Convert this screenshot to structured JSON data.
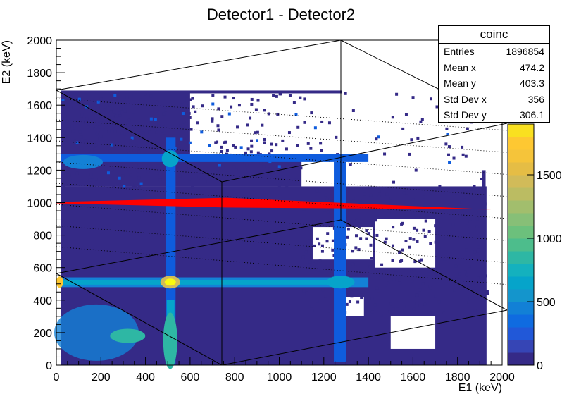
{
  "chart_data": {
    "type": "heatmap",
    "title": "Detector1 - Detector2",
    "xlabel": "E1 (keV)",
    "ylabel": "E2 (keV)",
    "xlim": [
      0,
      2000
    ],
    "ylim": [
      0,
      2000
    ],
    "x_ticks": [
      "0",
      "200",
      "400",
      "600",
      "800",
      "1000",
      "1200",
      "1400",
      "1600",
      "1800",
      "2000"
    ],
    "y_ticks": [
      "0",
      "200",
      "400",
      "600",
      "800",
      "1000",
      "1200",
      "1400",
      "1600",
      "1800",
      "2000"
    ],
    "z_ticks": [
      "0",
      "500",
      "1000",
      "1500"
    ],
    "z_max_visible": 1900,
    "colormap": [
      "#352a87",
      "#0f5cdd",
      "#1481d6",
      "#06a4ca",
      "#2eb7a4",
      "#87bf77",
      "#d1bb59",
      "#fec832",
      "#f9fb0e"
    ],
    "overlay_shape": {
      "type": "red_wedge",
      "color": "#ff0000",
      "x_start": 0,
      "x_end": 2000,
      "y_left": 1000,
      "y_right": 958
    },
    "features": [
      {
        "name": "511 keV horizontal band",
        "axis": "y",
        "value": 511
      },
      {
        "name": "511 keV vertical band",
        "axis": "x",
        "value": 511
      },
      {
        "name": "1275 keV vertical band",
        "axis": "x",
        "value": 1275
      },
      {
        "name": "1275 keV horizontal band",
        "axis": "y",
        "value": 1275
      },
      {
        "name": "hot spot",
        "x": 511,
        "y": 511
      },
      {
        "name": "hot spot",
        "x": 1275,
        "y": 511
      },
      {
        "name": "hot spot",
        "x": 511,
        "y": 1275
      }
    ]
  },
  "stats_box": {
    "title": "coinc",
    "rows": [
      {
        "label": "Entries",
        "value": "1896854"
      },
      {
        "label": "Mean x",
        "value": "474.2"
      },
      {
        "label": "Mean y",
        "value": "403.3"
      },
      {
        "label": "Std Dev x",
        "value": "356"
      },
      {
        "label": "Std Dev y",
        "value": "306.1"
      }
    ]
  },
  "colors": {
    "frame": "#000000",
    "dotted": "#000000"
  }
}
